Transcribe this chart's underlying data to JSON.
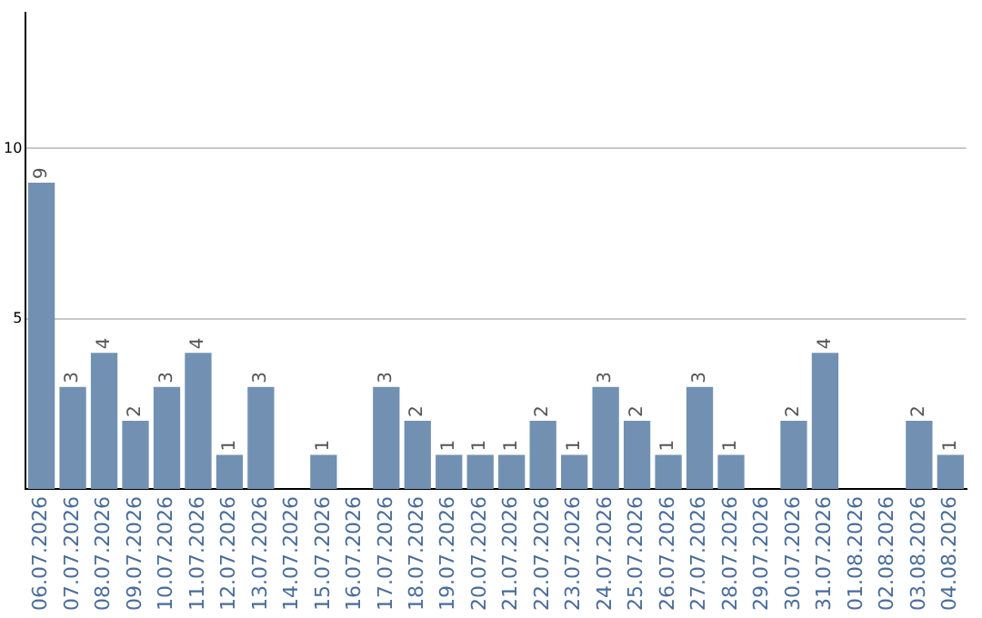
{
  "chart_data": {
    "type": "bar",
    "categories": [
      "06.07.2026",
      "07.07.2026",
      "08.07.2026",
      "09.07.2026",
      "10.07.2026",
      "11.07.2026",
      "12.07.2026",
      "13.07.2026",
      "14.07.2026",
      "15.07.2026",
      "16.07.2026",
      "17.07.2026",
      "18.07.2026",
      "19.07.2026",
      "20.07.2026",
      "21.07.2026",
      "22.07.2026",
      "23.07.2026",
      "24.07.2026",
      "25.07.2026",
      "26.07.2026",
      "27.07.2026",
      "28.07.2026",
      "29.07.2026",
      "30.07.2026",
      "31.07.2026",
      "01.08.2026",
      "02.08.2026",
      "03.08.2026",
      "04.08.2026"
    ],
    "values": [
      9,
      3,
      4,
      2,
      3,
      4,
      1,
      3,
      null,
      1,
      null,
      3,
      2,
      1,
      1,
      1,
      2,
      1,
      3,
      2,
      1,
      3,
      1,
      null,
      2,
      4,
      null,
      null,
      2,
      1
    ],
    "color": "#7291b2",
    "ylim": [
      0,
      14
    ],
    "yticks": [
      5,
      10
    ],
    "grid": "y",
    "data_labels": true
  }
}
